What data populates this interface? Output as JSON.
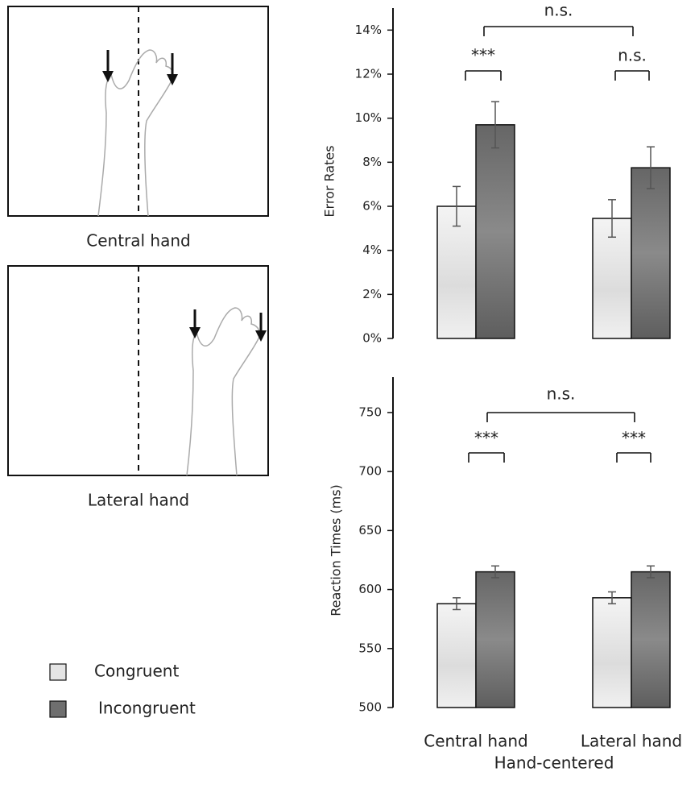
{
  "panels": [
    {
      "label": "Central hand"
    },
    {
      "label": "Lateral hand"
    }
  ],
  "chart_data": [
    {
      "type": "bar",
      "ylabel": "Error Rates",
      "ylim": [
        0,
        15
      ],
      "yticks": [
        {
          "value": 0,
          "label": "0%"
        },
        {
          "value": 2,
          "label": "2%"
        },
        {
          "value": 4,
          "label": "4%"
        },
        {
          "value": 6,
          "label": "6%"
        },
        {
          "value": 8,
          "label": "8%"
        },
        {
          "value": 10,
          "label": "10%"
        },
        {
          "value": 12,
          "label": "12%"
        },
        {
          "value": 14,
          "label": "14%"
        }
      ],
      "series": [
        {
          "name": "Congruent",
          "color": "#e4e4e4",
          "values": [
            6.0,
            5.45
          ],
          "errors": [
            0.9,
            0.85
          ]
        },
        {
          "name": "Incongruent",
          "color": "#6f6f6f",
          "values": [
            9.7,
            7.75
          ],
          "errors": [
            1.05,
            0.95
          ]
        }
      ],
      "annotations": [
        "n.s.",
        "***",
        "n.s."
      ]
    },
    {
      "type": "bar",
      "ylabel": "Reaction Times (ms)",
      "xlabel": "Hand-centered",
      "categories": [
        "Central hand",
        "Lateral hand"
      ],
      "ylim": [
        500,
        780
      ],
      "yticks": [
        500,
        550,
        600,
        650,
        700,
        750
      ],
      "series": [
        {
          "name": "Congruent",
          "color": "#e4e4e4",
          "values": [
            588,
            593
          ],
          "errors": [
            5,
            5
          ]
        },
        {
          "name": "Incongruent",
          "color": "#6f6f6f",
          "values": [
            615,
            615
          ],
          "errors": [
            5,
            5
          ]
        }
      ],
      "annotations": [
        "n.s.",
        "***",
        "***"
      ]
    }
  ]
}
